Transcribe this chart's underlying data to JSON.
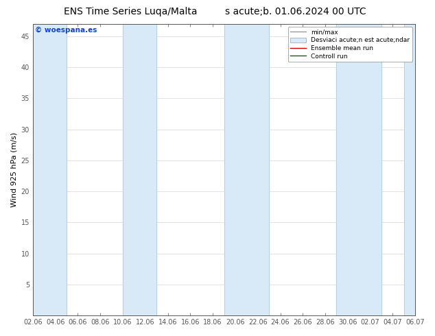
{
  "title_left": "ENS Time Series Luqa/Malta",
  "title_right": "s acute;b. 01.06.2024 00 UTC",
  "ylabel": "Wind 925 hPa (m/s)",
  "ylim": [
    0,
    47
  ],
  "yticks": [
    5,
    10,
    15,
    20,
    25,
    30,
    35,
    40,
    45
  ],
  "xtick_labels": [
    "02.06",
    "04.06",
    "06.06",
    "08.06",
    "10.06",
    "12.06",
    "14.06",
    "16.06",
    "18.06",
    "20.06",
    "22.06",
    "24.06",
    "26.06",
    "28.06",
    "30.06",
    "02.07",
    "04.07",
    "06.07"
  ],
  "background_color": "#ffffff",
  "plot_bg_color": "#ffffff",
  "band_color": "#d8eaf8",
  "band_edge_color": "#b0cce0",
  "watermark": "© woespana.es",
  "legend_items": [
    "min/max",
    "Desviaci acute;n est acute;ndar",
    "Ensemble mean run",
    "Controll run"
  ],
  "n_ticks": 18,
  "title_fontsize": 10,
  "axis_fontsize": 8,
  "tick_fontsize": 7,
  "ylabel_fontsize": 8
}
